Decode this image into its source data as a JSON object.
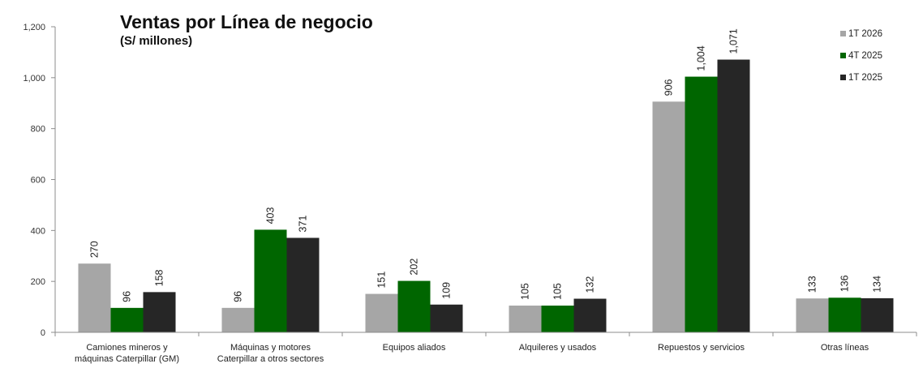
{
  "chart_data": {
    "type": "bar",
    "title": "Ventas por Línea de negocio",
    "subtitle": "(S/ millones)",
    "categories": [
      [
        "Camiones mineros y",
        "máquinas Caterpillar (GM)"
      ],
      [
        "Máquinas y motores",
        "Caterpillar a otros sectores"
      ],
      [
        "Equipos aliados"
      ],
      [
        "Alquileres y usados"
      ],
      [
        "Repuestos y servicios"
      ],
      [
        "Otras líneas"
      ]
    ],
    "series": [
      {
        "name": "1T 2026",
        "color": "#a6a6a6",
        "values": [
          270,
          96,
          151,
          105,
          906,
          133
        ],
        "labels": [
          "270",
          "96",
          "151",
          "105",
          "906",
          "133"
        ]
      },
      {
        "name": "4T 2025",
        "color": "#006600",
        "values": [
          96,
          403,
          202,
          105,
          1004,
          136
        ],
        "labels": [
          "96",
          "403",
          "202",
          "105",
          "1,004",
          "136"
        ]
      },
      {
        "name": "1T 2025",
        "color": "#262626",
        "values": [
          158,
          371,
          109,
          132,
          1071,
          134
        ],
        "labels": [
          "158",
          "371",
          "109",
          "132",
          "1,071",
          "134"
        ]
      }
    ],
    "yticks": [
      "0",
      "200",
      "400",
      "600",
      "800",
      "1,000",
      "1,200"
    ],
    "ylim": [
      0,
      1200
    ],
    "xlabel": "",
    "ylabel": "",
    "grid": false,
    "legend_position": "top-right"
  }
}
